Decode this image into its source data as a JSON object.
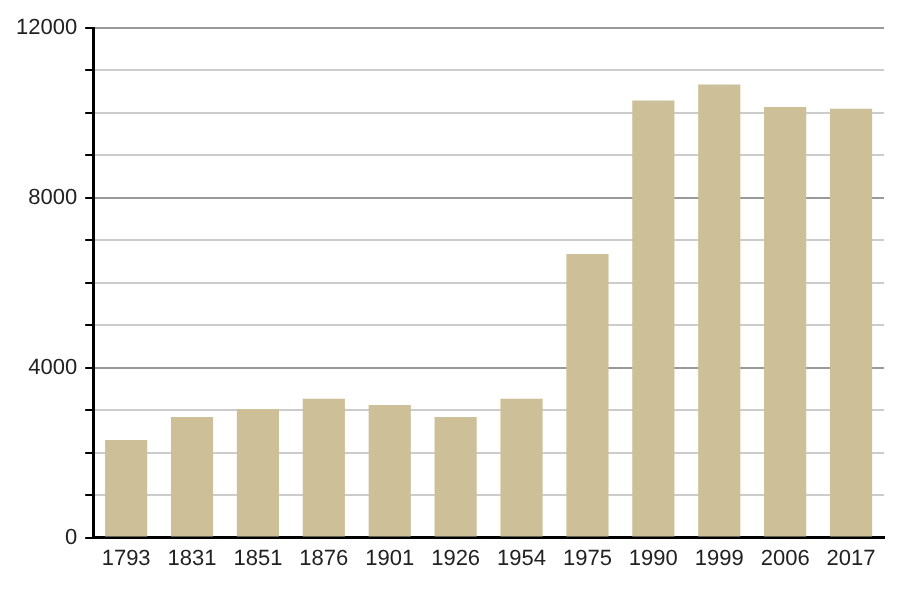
{
  "chart_data": {
    "type": "bar",
    "categories": [
      "1793",
      "1831",
      "1851",
      "1876",
      "1901",
      "1926",
      "1954",
      "1975",
      "1990",
      "1999",
      "2006",
      "2017"
    ],
    "values": [
      2300,
      2840,
      3030,
      3270,
      3120,
      2840,
      3270,
      6680,
      10290,
      10670,
      10140,
      10100
    ],
    "color": "#cdbf98",
    "ylim": [
      0,
      12000
    ],
    "yticks": [
      0,
      {
        "value": 1000,
        "label": null
      },
      {
        "value": 2000,
        "label": null
      },
      {
        "value": 3000,
        "label": null
      },
      4000,
      {
        "value": 5000,
        "label": null
      },
      {
        "value": 6000,
        "label": null
      },
      {
        "value": 7000,
        "label": null
      },
      8000,
      {
        "value": 9000,
        "label": null
      },
      {
        "value": 10000,
        "label": null
      },
      {
        "value": 11000,
        "label": null
      },
      12000
    ],
    "grid": "y"
  }
}
